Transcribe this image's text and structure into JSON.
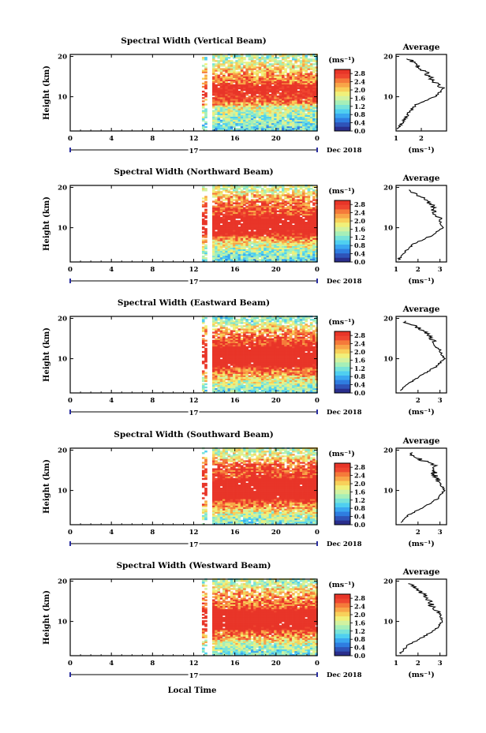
{
  "figure": {
    "x_axis_label": "Local Time",
    "month_label": "Dec 2018",
    "day_label": "17",
    "unit_label": "(ms⁻¹)",
    "avg_title": "Average",
    "colors": {
      "scale": [
        "#2a2e8c",
        "#2f53b8",
        "#2f7de0",
        "#3aa7f0",
        "#4fcff0",
        "#78e3d8",
        "#a6efb8",
        "#d2f2a0",
        "#f0f07a",
        "#f8d05a",
        "#f8a548",
        "#f57a3a",
        "#ef4630",
        "#e83528"
      ],
      "gap": "#ffffff"
    }
  },
  "chart_data": [
    {
      "type": "heatmap",
      "title": "Spectral Width (Vertical Beam)",
      "ylabel": "Height (km)",
      "xlim": [
        0,
        24
      ],
      "ylim": [
        1.5,
        20.5
      ],
      "x_ticks": [
        "0",
        "4",
        "8",
        "12",
        "16",
        "20",
        "0"
      ],
      "y_ticks": [
        "20",
        "10"
      ],
      "data_extent_hours": [
        12.8,
        24
      ],
      "missing_column_hours": [
        13.3,
        13.8
      ],
      "colorbar_range": [
        0,
        3.0
      ],
      "colorbar_ticks": [
        "2.8",
        "2.4",
        "2.0",
        "1.6",
        "1.2",
        "0.8",
        "0.4",
        "0.0"
      ],
      "avg_xticks": [
        "1",
        "2"
      ],
      "avg_xlim": [
        1,
        3.0
      ],
      "profile_km": [
        2,
        4,
        6,
        8,
        10,
        12,
        14,
        16,
        18,
        19.5
      ],
      "profile_avg": [
        1.05,
        1.3,
        1.5,
        1.8,
        2.55,
        2.85,
        2.45,
        2.25,
        1.8,
        1.55
      ]
    },
    {
      "type": "heatmap",
      "title": "Spectral Width (Northward Beam)",
      "ylabel": "Height (km)",
      "xlim": [
        0,
        24
      ],
      "ylim": [
        1.5,
        20.5
      ],
      "x_ticks": [
        "0",
        "4",
        "8",
        "12",
        "16",
        "20",
        "0"
      ],
      "y_ticks": [
        "20",
        "10"
      ],
      "data_extent_hours": [
        12.8,
        24
      ],
      "missing_column_hours": [
        13.3,
        13.8
      ],
      "colorbar_range": [
        0,
        3.0
      ],
      "colorbar_ticks": [
        "2.8",
        "2.4",
        "2.0",
        "1.6",
        "1.2",
        "0.8",
        "0.4",
        "0.0"
      ],
      "avg_xticks": [
        "1",
        "2",
        "3"
      ],
      "avg_xlim": [
        1,
        3.3
      ],
      "profile_km": [
        2,
        4,
        6,
        8,
        10,
        12,
        14,
        16,
        18,
        19.5
      ],
      "profile_avg": [
        1.1,
        1.4,
        1.8,
        2.6,
        3.1,
        3.0,
        2.7,
        2.6,
        2.1,
        1.6
      ]
    },
    {
      "type": "heatmap",
      "title": "Spectral Width (Eastward Beam)",
      "ylabel": "Height (km)",
      "xlim": [
        0,
        24
      ],
      "ylim": [
        1.5,
        20.5
      ],
      "x_ticks": [
        "0",
        "4",
        "8",
        "12",
        "16",
        "20",
        "0"
      ],
      "y_ticks": [
        "20",
        "10"
      ],
      "data_extent_hours": [
        12.8,
        24
      ],
      "missing_column_hours": [
        13.3,
        13.8
      ],
      "colorbar_range": [
        0,
        3.0
      ],
      "colorbar_ticks": [
        "2.8",
        "2.4",
        "2.0",
        "1.6",
        "1.2",
        "0.8",
        "0.4",
        "0.0"
      ],
      "avg_xticks": [
        "2",
        "3"
      ],
      "avg_xlim": [
        1,
        3.3
      ],
      "profile_km": [
        2,
        4,
        6,
        8,
        10,
        12,
        14,
        16,
        18,
        19.5
      ],
      "profile_avg": [
        1.2,
        1.6,
        2.2,
        2.8,
        3.2,
        3.0,
        2.8,
        2.5,
        1.9,
        1.3
      ]
    },
    {
      "type": "heatmap",
      "title": "Spectral Width (Southward Beam)",
      "ylabel": "Height (km)",
      "xlim": [
        0,
        24
      ],
      "ylim": [
        1.5,
        20.5
      ],
      "x_ticks": [
        "0",
        "4",
        "8",
        "12",
        "16",
        "20",
        "0"
      ],
      "y_ticks": [
        "20",
        "10"
      ],
      "data_extent_hours": [
        12.8,
        24
      ],
      "missing_column_hours": [
        13.3,
        13.8
      ],
      "colorbar_range": [
        0,
        3.0
      ],
      "colorbar_ticks": [
        "2.8",
        "2.4",
        "2.0",
        "1.6",
        "1.2",
        "0.8",
        "0.4",
        "0.0"
      ],
      "avg_xticks": [
        "2",
        "3"
      ],
      "avg_xlim": [
        1,
        3.3
      ],
      "profile_km": [
        2,
        4,
        6,
        8,
        10,
        12,
        14,
        16,
        18,
        19.5
      ],
      "profile_avg": [
        1.2,
        1.6,
        2.3,
        2.9,
        3.2,
        3.0,
        2.7,
        2.8,
        2.0,
        1.6
      ]
    },
    {
      "type": "heatmap",
      "title": "Spectral Width (Westward Beam)",
      "ylabel": "Height (km)",
      "xlim": [
        0,
        24
      ],
      "ylim": [
        1.5,
        20.5
      ],
      "x_ticks": [
        "0",
        "4",
        "8",
        "12",
        "16",
        "20",
        "0"
      ],
      "y_ticks": [
        "20",
        "10"
      ],
      "data_extent_hours": [
        12.8,
        24
      ],
      "missing_column_hours": [
        13.3,
        13.8
      ],
      "colorbar_range": [
        0,
        3.0
      ],
      "colorbar_ticks": [
        "2.8",
        "2.4",
        "2.0",
        "1.6",
        "1.2",
        "0.8",
        "0.4",
        "0.0"
      ],
      "avg_xticks": [
        "1",
        "2",
        "3"
      ],
      "avg_xlim": [
        1,
        3.3
      ],
      "profile_km": [
        2,
        4,
        6,
        8,
        10,
        12,
        14,
        16,
        18,
        19.5
      ],
      "profile_avg": [
        1.2,
        1.5,
        2.2,
        2.8,
        3.1,
        3.0,
        2.6,
        2.4,
        2.0,
        1.5
      ]
    }
  ]
}
